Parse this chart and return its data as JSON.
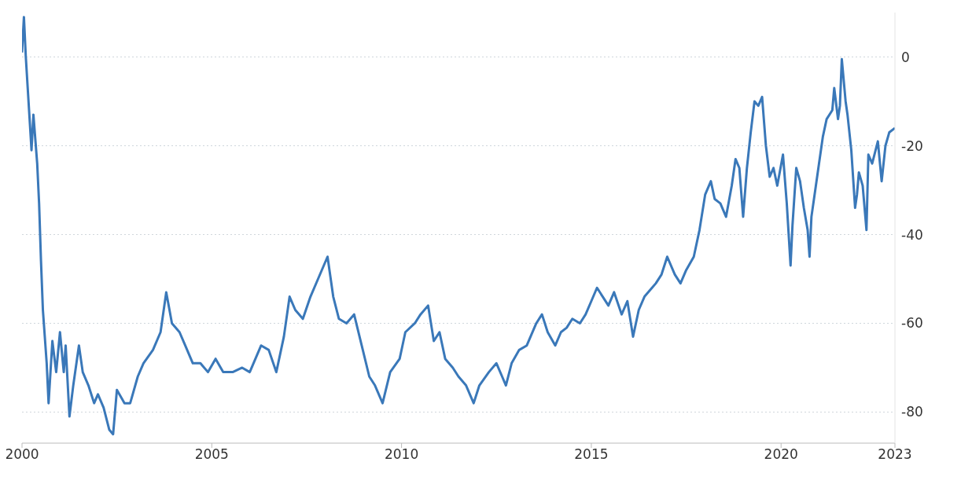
{
  "chart_data": {
    "type": "line",
    "x": [
      2000.0,
      2000.05,
      2000.1,
      2000.15,
      2000.25,
      2000.3,
      2000.4,
      2000.45,
      2000.5,
      2000.55,
      2000.65,
      2000.7,
      2000.8,
      2000.9,
      2001.0,
      2001.1,
      2001.15,
      2001.25,
      2001.35,
      2001.5,
      2001.6,
      2001.75,
      2001.9,
      2002.0,
      2002.15,
      2002.3,
      2002.4,
      2002.5,
      2002.7,
      2002.85,
      2003.05,
      2003.2,
      2003.45,
      2003.65,
      2003.8,
      2003.95,
      2004.15,
      2004.3,
      2004.5,
      2004.7,
      2004.9,
      2005.1,
      2005.3,
      2005.55,
      2005.8,
      2006.0,
      2006.3,
      2006.5,
      2006.7,
      2006.9,
      2007.05,
      2007.2,
      2007.4,
      2007.6,
      2007.8,
      2008.05,
      2008.2,
      2008.35,
      2008.55,
      2008.75,
      2008.95,
      2009.15,
      2009.3,
      2009.5,
      2009.7,
      2009.95,
      2010.1,
      2010.35,
      2010.5,
      2010.7,
      2010.85,
      2011.0,
      2011.15,
      2011.35,
      2011.5,
      2011.7,
      2011.9,
      2012.05,
      2012.3,
      2012.5,
      2012.65,
      2012.75,
      2012.9,
      2013.1,
      2013.3,
      2013.55,
      2013.7,
      2013.85,
      2014.05,
      2014.2,
      2014.35,
      2014.5,
      2014.7,
      2014.85,
      2015.0,
      2015.15,
      2015.3,
      2015.45,
      2015.6,
      2015.8,
      2015.95,
      2016.1,
      2016.25,
      2016.4,
      2016.6,
      2016.7,
      2016.85,
      2017.0,
      2017.2,
      2017.35,
      2017.5,
      2017.7,
      2017.85,
      2018.0,
      2018.15,
      2018.25,
      2018.4,
      2018.55,
      2018.7,
      2018.8,
      2018.9,
      2019.0,
      2019.1,
      2019.2,
      2019.3,
      2019.4,
      2019.5,
      2019.6,
      2019.7,
      2019.8,
      2019.9,
      2020.05,
      2020.15,
      2020.25,
      2020.3,
      2020.4,
      2020.5,
      2020.6,
      2020.7,
      2020.75,
      2020.8,
      2020.9,
      2021.0,
      2021.1,
      2021.2,
      2021.35,
      2021.4,
      2021.5,
      2021.55,
      2021.6,
      2021.7,
      2021.75,
      2021.85,
      2021.95,
      2022.0,
      2022.05,
      2022.15,
      2022.25,
      2022.3,
      2022.4,
      2022.55,
      2022.65,
      2022.75,
      2022.85,
      2023.0
    ],
    "series": [
      {
        "color": "#3a78b9",
        "values": [
          1,
          9,
          0,
          -7,
          -21,
          -13,
          -24,
          -33,
          -46,
          -57,
          -69,
          -78,
          -64,
          -71,
          -62,
          -71,
          -65,
          -81,
          -74,
          -65,
          -71,
          -74,
          -78,
          -76,
          -79,
          -84,
          -85,
          -75,
          -78,
          -78,
          -72,
          -69,
          -66,
          -62,
          -53,
          -60,
          -62,
          -65,
          -69,
          -69,
          -71,
          -68,
          -71,
          -71,
          -70,
          -71,
          -65,
          -66,
          -71,
          -63,
          -54,
          -57,
          -59,
          -54,
          -50,
          -45,
          -54,
          -59,
          -60,
          -58,
          -65,
          -72,
          -74,
          -78,
          -71,
          -68,
          -62,
          -60,
          -58,
          -56,
          -64,
          -62,
          -68,
          -70,
          -72,
          -74,
          -78,
          -74,
          -71,
          -69,
          -72,
          -74,
          -69,
          -66,
          -65,
          -60,
          -58,
          -62,
          -65,
          -62,
          -61,
          -59,
          -60,
          -58,
          -55,
          -52,
          -54,
          -56,
          -53,
          -58,
          -55,
          -63,
          -57,
          -54,
          -52,
          -51,
          -49,
          -45,
          -49,
          -51,
          -48,
          -45,
          -39,
          -31,
          -28,
          -32,
          -33,
          -36,
          -29,
          -23,
          -25,
          -36,
          -25,
          -17,
          -10,
          -11,
          -9,
          -20,
          -27,
          -25,
          -29,
          -22,
          -33,
          -47,
          -38,
          -25,
          -28,
          -34,
          -39,
          -45,
          -36,
          -30,
          -24,
          -18,
          -14,
          -12,
          -7,
          -14,
          -11,
          -0.5,
          -10,
          -13,
          -21,
          -34,
          -31,
          -26,
          -29,
          -39,
          -22,
          -24,
          -19,
          -28,
          -20,
          -17,
          -16
        ]
      }
    ],
    "xlim": [
      2000,
      2023
    ],
    "xticks": [
      2000,
      2005,
      2010,
      2015,
      2020,
      2023
    ],
    "ylim": [
      -87,
      10
    ],
    "yticks": [
      0,
      -20,
      -40,
      -60,
      -80
    ],
    "grid": "y",
    "marker": "none",
    "line_style": "solid"
  }
}
